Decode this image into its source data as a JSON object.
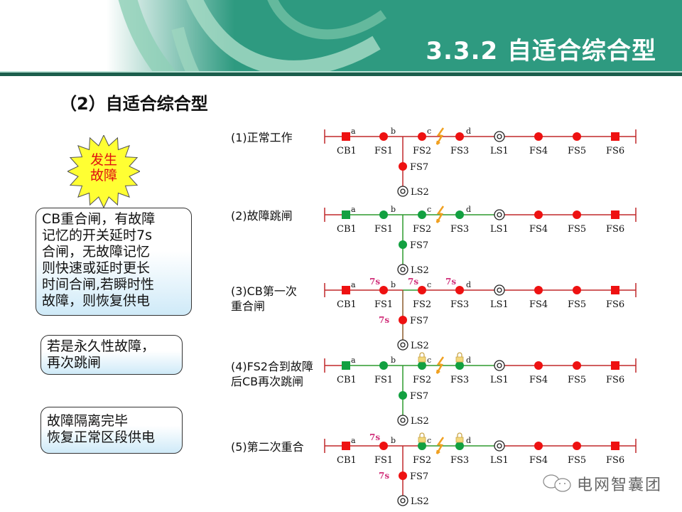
{
  "header": {
    "title": "3.3.2 自适合综合型"
  },
  "subtitle": "（2）自适合综合型",
  "fault_burst": {
    "lines": [
      "发生",
      "故障"
    ],
    "color": "#e01010",
    "fill": "#ffff33"
  },
  "notes": [
    {
      "lines": [
        "CB重合闸，有故障",
        "记忆的开关延时7s",
        "合闸，无故障记忆",
        "则快速或延时更长",
        "时间合闸,若瞬时性",
        "故障，则恢复供电"
      ]
    },
    {
      "lines": [
        "若是永久性故障，",
        "再次跳闸"
      ]
    },
    {
      "lines": [
        "故障隔离完毕",
        "恢复正常区段供电"
      ]
    }
  ],
  "colors": {
    "closed": "#ee1111",
    "open": "#12a040",
    "line_live": "#c0282a",
    "line_dead": "#2e9a2e",
    "line_brown": "#8b5a2b",
    "timer": "#d0307a",
    "fault": "#f0a020"
  },
  "devices": {
    "main": [
      "CB1",
      "FS1",
      "FS2",
      "FS3",
      "LS1",
      "FS4",
      "FS5",
      "FS6"
    ],
    "branch": [
      "FS7",
      "LS2"
    ],
    "points": [
      "a",
      "b",
      "c",
      "d"
    ]
  },
  "rows": [
    {
      "label": [
        "(1)正常工作"
      ],
      "states": [
        "closed",
        "closed",
        "closed",
        "closed",
        "ring",
        "closed",
        "closed",
        "closed",
        "closed"
      ],
      "segments": [
        "live",
        "live",
        "live",
        "live",
        "live",
        "live",
        "live",
        "live",
        "live",
        "live"
      ],
      "branch": "live",
      "fault": true,
      "locks": [],
      "timers": []
    },
    {
      "label": [
        "(2)故障跳闸"
      ],
      "states": [
        "open",
        "open",
        "open",
        "open",
        "ring",
        "closed",
        "closed",
        "closed",
        "open"
      ],
      "segments": [
        "live",
        "dead",
        "dead",
        "dead",
        "dead",
        "dead",
        "live",
        "live",
        "live",
        "live"
      ],
      "branch": "dead",
      "fault": true,
      "locks": [],
      "timers": []
    },
    {
      "label": [
        "(3)CB第一次",
        "重合闸"
      ],
      "states": [
        "closed",
        "closed",
        "closed",
        "closed",
        "ring",
        "closed",
        "closed",
        "closed",
        "closed"
      ],
      "segments": [
        "live",
        "live",
        "live",
        "dead",
        "live",
        "live",
        "live",
        "live",
        "live",
        "live"
      ],
      "branch": "brown",
      "fault": false,
      "locks": [],
      "timers": [
        {
          "at": "FS1",
          "text": "7s"
        },
        {
          "at": "FS2",
          "text": "7s"
        },
        {
          "at": "FS3",
          "text": "7s"
        },
        {
          "at": "FS7",
          "text": "7s"
        }
      ]
    },
    {
      "label": [
        "(4)FS2合到故障",
        "后CB再次跳闸"
      ],
      "states": [
        "open",
        "open",
        "open",
        "open",
        "ring",
        "closed",
        "closed",
        "closed",
        "open"
      ],
      "segments": [
        "live",
        "dead",
        "dead",
        "dead",
        "dead",
        "dead",
        "live",
        "live",
        "live",
        "live"
      ],
      "branch": "dead",
      "fault": true,
      "locks": [
        "FS2",
        "FS3"
      ],
      "timers": []
    },
    {
      "label": [
        "(5)第二次重合"
      ],
      "states": [
        "closed",
        "closed",
        "open",
        "open",
        "ring",
        "closed",
        "closed",
        "closed",
        "closed"
      ],
      "segments": [
        "live",
        "live",
        "live",
        "live",
        "dead",
        "dead",
        "live",
        "live",
        "live",
        "live"
      ],
      "branch": "live",
      "fault": true,
      "locks": [
        "FS2",
        "FS3"
      ],
      "timers": [
        {
          "at": "FS1",
          "text": "7s"
        },
        {
          "at": "FS7",
          "text": "7s"
        }
      ]
    }
  ],
  "watermark": {
    "icon": "wechat-icon",
    "text": "电网智囊团"
  }
}
